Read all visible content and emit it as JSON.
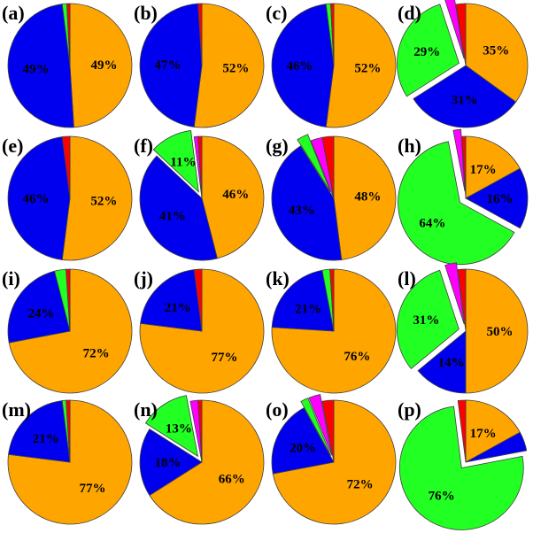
{
  "colors": {
    "orange": "#FFA500",
    "blue": "#0000EE",
    "green": "#22FF22",
    "magenta": "#FF00FF",
    "red": "#FF0000"
  },
  "chart_data": [
    {
      "panel": "(a)",
      "type": "pie",
      "slices": [
        {
          "color": "orange",
          "value": 49,
          "label": "49%"
        },
        {
          "color": "blue",
          "value": 49,
          "label": "49%"
        },
        {
          "color": "green",
          "value": 1.2,
          "label": ""
        },
        {
          "color": "red",
          "value": 0.8,
          "label": ""
        }
      ]
    },
    {
      "panel": "(b)",
      "type": "pie",
      "slices": [
        {
          "color": "orange",
          "value": 52,
          "label": "52%"
        },
        {
          "color": "blue",
          "value": 47,
          "label": "47%"
        },
        {
          "color": "red",
          "value": 1,
          "label": ""
        }
      ]
    },
    {
      "panel": "(c)",
      "type": "pie",
      "slices": [
        {
          "color": "orange",
          "value": 52,
          "label": "52%"
        },
        {
          "color": "blue",
          "value": 46,
          "label": "46%"
        },
        {
          "color": "green",
          "value": 1.2,
          "label": ""
        },
        {
          "color": "red",
          "value": 0.8,
          "label": ""
        }
      ]
    },
    {
      "panel": "(d)",
      "type": "pie",
      "slices": [
        {
          "color": "orange",
          "value": 35,
          "label": "35%"
        },
        {
          "color": "blue",
          "value": 31,
          "label": "31%"
        },
        {
          "color": "green",
          "value": 29,
          "label": "29%",
          "explode": 8
        },
        {
          "color": "magenta",
          "value": 2.5,
          "label": "",
          "explode": 8
        },
        {
          "color": "red",
          "value": 2.5,
          "label": ""
        }
      ]
    },
    {
      "panel": "(e)",
      "type": "pie",
      "slices": [
        {
          "color": "orange",
          "value": 52,
          "label": "52%"
        },
        {
          "color": "blue",
          "value": 46,
          "label": "46%"
        },
        {
          "color": "red",
          "value": 2,
          "label": ""
        }
      ]
    },
    {
      "panel": "(f)",
      "type": "pie",
      "slices": [
        {
          "color": "orange",
          "value": 46,
          "label": "46%"
        },
        {
          "color": "blue",
          "value": 41,
          "label": "41%"
        },
        {
          "color": "green",
          "value": 11,
          "label": "11%",
          "explode": 8
        },
        {
          "color": "magenta",
          "value": 1,
          "label": ""
        },
        {
          "color": "red",
          "value": 1,
          "label": ""
        }
      ]
    },
    {
      "panel": "(g)",
      "type": "pie",
      "slices": [
        {
          "color": "orange",
          "value": 48,
          "label": "48%"
        },
        {
          "color": "blue",
          "value": 43,
          "label": "43%"
        },
        {
          "color": "green",
          "value": 3,
          "label": "",
          "explode": 8
        },
        {
          "color": "magenta",
          "value": 3,
          "label": ""
        },
        {
          "color": "red",
          "value": 3,
          "label": ""
        }
      ]
    },
    {
      "panel": "(h)",
      "type": "pie",
      "slices": [
        {
          "color": "orange",
          "value": 17,
          "label": "17%"
        },
        {
          "color": "blue",
          "value": 16,
          "label": "16%"
        },
        {
          "color": "green",
          "value": 64,
          "label": "64%",
          "explode": 8
        },
        {
          "color": "magenta",
          "value": 2,
          "label": "",
          "explode": 8
        },
        {
          "color": "red",
          "value": 1,
          "label": ""
        }
      ]
    },
    {
      "panel": "(i)",
      "type": "pie",
      "slices": [
        {
          "color": "orange",
          "value": 72,
          "label": "72%"
        },
        {
          "color": "blue",
          "value": 24,
          "label": "24%"
        },
        {
          "color": "green",
          "value": 3,
          "label": ""
        },
        {
          "color": "red",
          "value": 1,
          "label": ""
        }
      ]
    },
    {
      "panel": "(j)",
      "type": "pie",
      "slices": [
        {
          "color": "orange",
          "value": 77,
          "label": "77%"
        },
        {
          "color": "blue",
          "value": 21,
          "label": "21%"
        },
        {
          "color": "red",
          "value": 2,
          "label": ""
        }
      ]
    },
    {
      "panel": "(k)",
      "type": "pie",
      "slices": [
        {
          "color": "orange",
          "value": 76,
          "label": "76%"
        },
        {
          "color": "blue",
          "value": 21,
          "label": "21%"
        },
        {
          "color": "green",
          "value": 2,
          "label": ""
        },
        {
          "color": "red",
          "value": 1,
          "label": ""
        }
      ]
    },
    {
      "panel": "(l)",
      "type": "pie",
      "slices": [
        {
          "color": "orange",
          "value": 50,
          "label": "50%"
        },
        {
          "color": "blue",
          "value": 14,
          "label": "14%"
        },
        {
          "color": "green",
          "value": 31,
          "label": "31%",
          "explode": 8
        },
        {
          "color": "magenta",
          "value": 3,
          "label": "",
          "explode": 8
        },
        {
          "color": "red",
          "value": 2,
          "label": ""
        }
      ]
    },
    {
      "panel": "(m)",
      "type": "pie",
      "slices": [
        {
          "color": "orange",
          "value": 77,
          "label": "77%"
        },
        {
          "color": "blue",
          "value": 21,
          "label": "21%"
        },
        {
          "color": "green",
          "value": 1,
          "label": ""
        },
        {
          "color": "red",
          "value": 1,
          "label": ""
        }
      ]
    },
    {
      "panel": "(n)",
      "type": "pie",
      "slices": [
        {
          "color": "orange",
          "value": 66,
          "label": "66%"
        },
        {
          "color": "blue",
          "value": 18,
          "label": "18%"
        },
        {
          "color": "green",
          "value": 13,
          "label": "13%",
          "explode": 8
        },
        {
          "color": "magenta",
          "value": 2,
          "label": ""
        },
        {
          "color": "red",
          "value": 1,
          "label": ""
        }
      ]
    },
    {
      "panel": "(o)",
      "type": "pie",
      "slices": [
        {
          "color": "orange",
          "value": 72,
          "label": "72%"
        },
        {
          "color": "blue",
          "value": 20,
          "label": "20%"
        },
        {
          "color": "green",
          "value": 2,
          "label": "",
          "explode": 8
        },
        {
          "color": "magenta",
          "value": 3,
          "label": "",
          "explode": 8
        },
        {
          "color": "red",
          "value": 3,
          "label": ""
        }
      ]
    },
    {
      "panel": "(p)",
      "type": "pie",
      "slices": [
        {
          "color": "orange",
          "value": 17,
          "label": "17%"
        },
        {
          "color": "blue",
          "value": 5,
          "label": ""
        },
        {
          "color": "green",
          "value": 76,
          "label": "76%",
          "explode": 8
        },
        {
          "color": "red",
          "value": 2,
          "label": ""
        }
      ]
    }
  ]
}
